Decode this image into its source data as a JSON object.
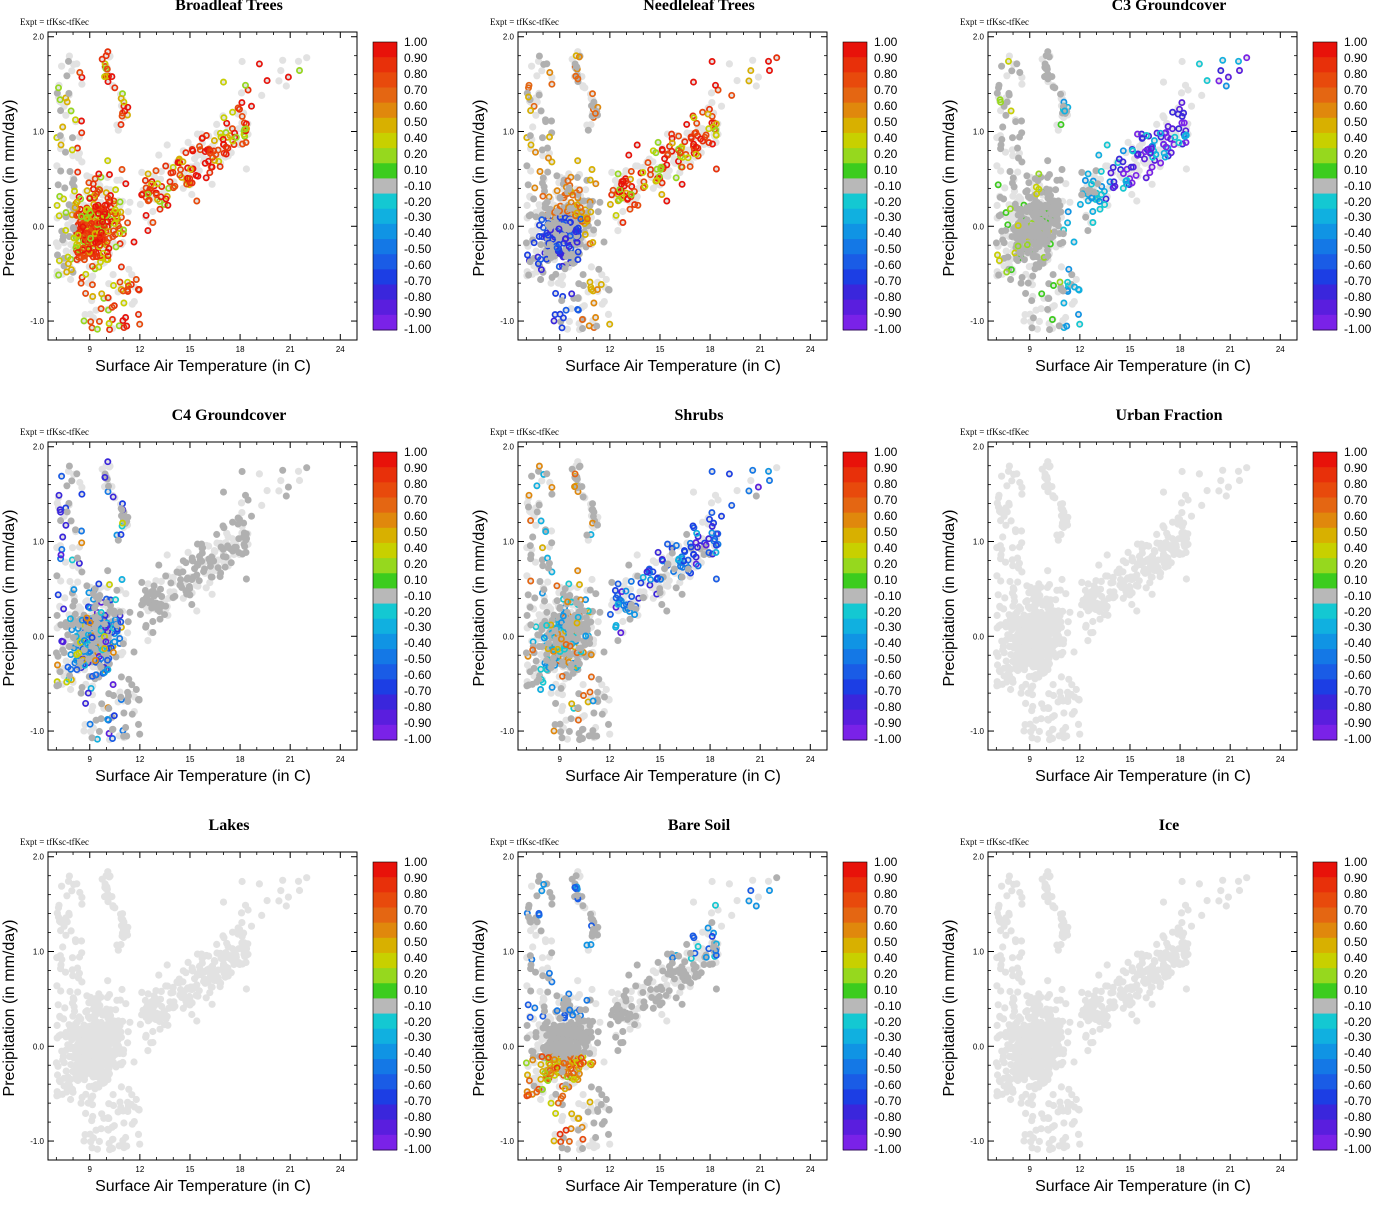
{
  "expt_label": "Expt = tfKsc-tfKec",
  "xlabel": "Surface Air Temperature (in C)",
  "ylabel": "Precipitation (in mm/day)",
  "chart_data": [
    {
      "type": "scatter",
      "title": "Broadleaf Trees",
      "pattern": "broadleaf"
    },
    {
      "type": "scatter",
      "title": "Needleleaf Trees",
      "pattern": "needleleaf"
    },
    {
      "type": "scatter",
      "title": "C3 Groundcover",
      "pattern": "c3"
    },
    {
      "type": "scatter",
      "title": "C4 Groundcover",
      "pattern": "c4"
    },
    {
      "type": "scatter",
      "title": "Shrubs",
      "pattern": "shrubs"
    },
    {
      "type": "scatter",
      "title": "Urban Fraction",
      "pattern": "none"
    },
    {
      "type": "scatter",
      "title": "Lakes",
      "pattern": "none"
    },
    {
      "type": "scatter",
      "title": "Bare Soil",
      "pattern": "baresoil"
    },
    {
      "type": "scatter",
      "title": "Ice",
      "pattern": "none"
    }
  ],
  "axes": {
    "xlim": [
      6.5,
      25
    ],
    "ylim": [
      -1.2,
      2.05
    ],
    "xticks": [
      "9",
      "12",
      "15",
      "18",
      "21",
      "24"
    ],
    "xtick_values": [
      9,
      12,
      15,
      18,
      21,
      24
    ],
    "yticks": [
      "-1.0",
      "0.0",
      "1.0",
      "2.0"
    ],
    "ytick_values": [
      -1,
      0,
      1,
      2
    ]
  },
  "colorbar": {
    "labels": [
      "1.00",
      "0.90",
      "0.80",
      "0.70",
      "0.60",
      "0.50",
      "0.40",
      "0.20",
      "0.10",
      "-0.10",
      "-0.20",
      "-0.30",
      "-0.40",
      "-0.50",
      "-0.60",
      "-0.70",
      "-0.80",
      "-0.90",
      "-1.00"
    ],
    "colors": [
      "#e8120a",
      "#e8300a",
      "#e84a0c",
      "#e46612",
      "#e0880c",
      "#d8b000",
      "#c8d000",
      "#96d81e",
      "#3ccc1e",
      "#b8b8b8",
      "#14c8d2",
      "#10b0e0",
      "#1094e4",
      "#1478e6",
      "#1a5ce6",
      "#1c3ee4",
      "#3a26dc",
      "#5a1ede",
      "#7a22e8"
    ]
  }
}
